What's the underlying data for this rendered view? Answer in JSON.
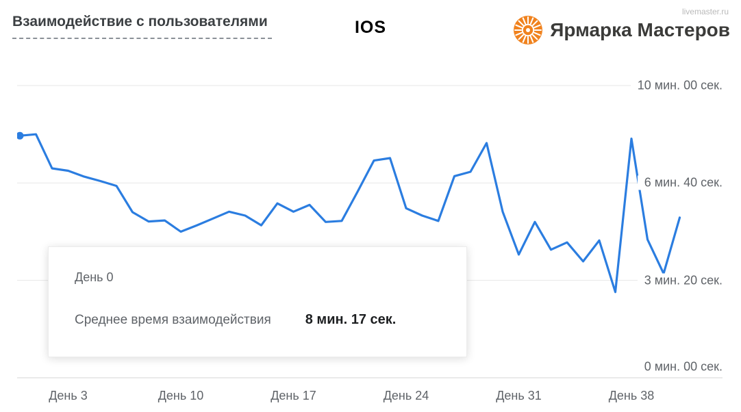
{
  "header": {
    "title": "Взаимодействие с пользователями",
    "platform": "IOS",
    "brand_name": "Ярмарка Мастеров",
    "brand_site": "livemaster.ru",
    "brand_color": "#f0821e"
  },
  "tooltip": {
    "day_label": "День 0",
    "metric_label": "Среднее время взаимодействия",
    "metric_value": "8 мин. 17 сек."
  },
  "chart_data": {
    "type": "line",
    "title": "Взаимодействие с пользователями (IOS)",
    "xlabel": "День",
    "ylabel": "Среднее время взаимодействия",
    "x_unit": "день",
    "days": [
      0,
      1,
      2,
      3,
      4,
      5,
      6,
      7,
      8,
      9,
      10,
      11,
      12,
      13,
      14,
      15,
      16,
      17,
      18,
      19,
      20,
      21,
      22,
      23,
      24,
      25,
      26,
      27,
      28,
      29,
      30,
      31,
      32,
      33,
      34,
      35,
      36,
      37,
      38,
      39,
      40,
      41
    ],
    "values_seconds": [
      497,
      500,
      430,
      425,
      413,
      404,
      394,
      340,
      321,
      323,
      300,
      313,
      327,
      341,
      333,
      313,
      358,
      341,
      355,
      320,
      322,
      383,
      446,
      451,
      348,
      333,
      322,
      414,
      423,
      482,
      341,
      253,
      320,
      263,
      278,
      239,
      282,
      176,
      491,
      284,
      214,
      329
    ],
    "ylim": [
      0,
      600
    ],
    "grid": true,
    "y_ticks": [
      {
        "label": "10 мин. 00 сек.",
        "seconds": 600
      },
      {
        "label": "6 мин. 40 сек.",
        "seconds": 400
      },
      {
        "label": "3 мин. 20 сек.",
        "seconds": 200
      },
      {
        "label": "0 мин. 00 сек.",
        "seconds": 0
      }
    ],
    "x_ticks": [
      {
        "label": "День 3",
        "day": 3
      },
      {
        "label": "День 10",
        "day": 10
      },
      {
        "label": "День 17",
        "day": 17
      },
      {
        "label": "День 24",
        "day": 24
      },
      {
        "label": "День 31",
        "day": 31
      },
      {
        "label": "День 38",
        "day": 38
      }
    ],
    "line_color": "#2b7de0",
    "grid_color": "#e7e7e7",
    "axis_color": "#d6d6d6",
    "highlight_point": {
      "day": 0,
      "seconds": 497
    }
  }
}
